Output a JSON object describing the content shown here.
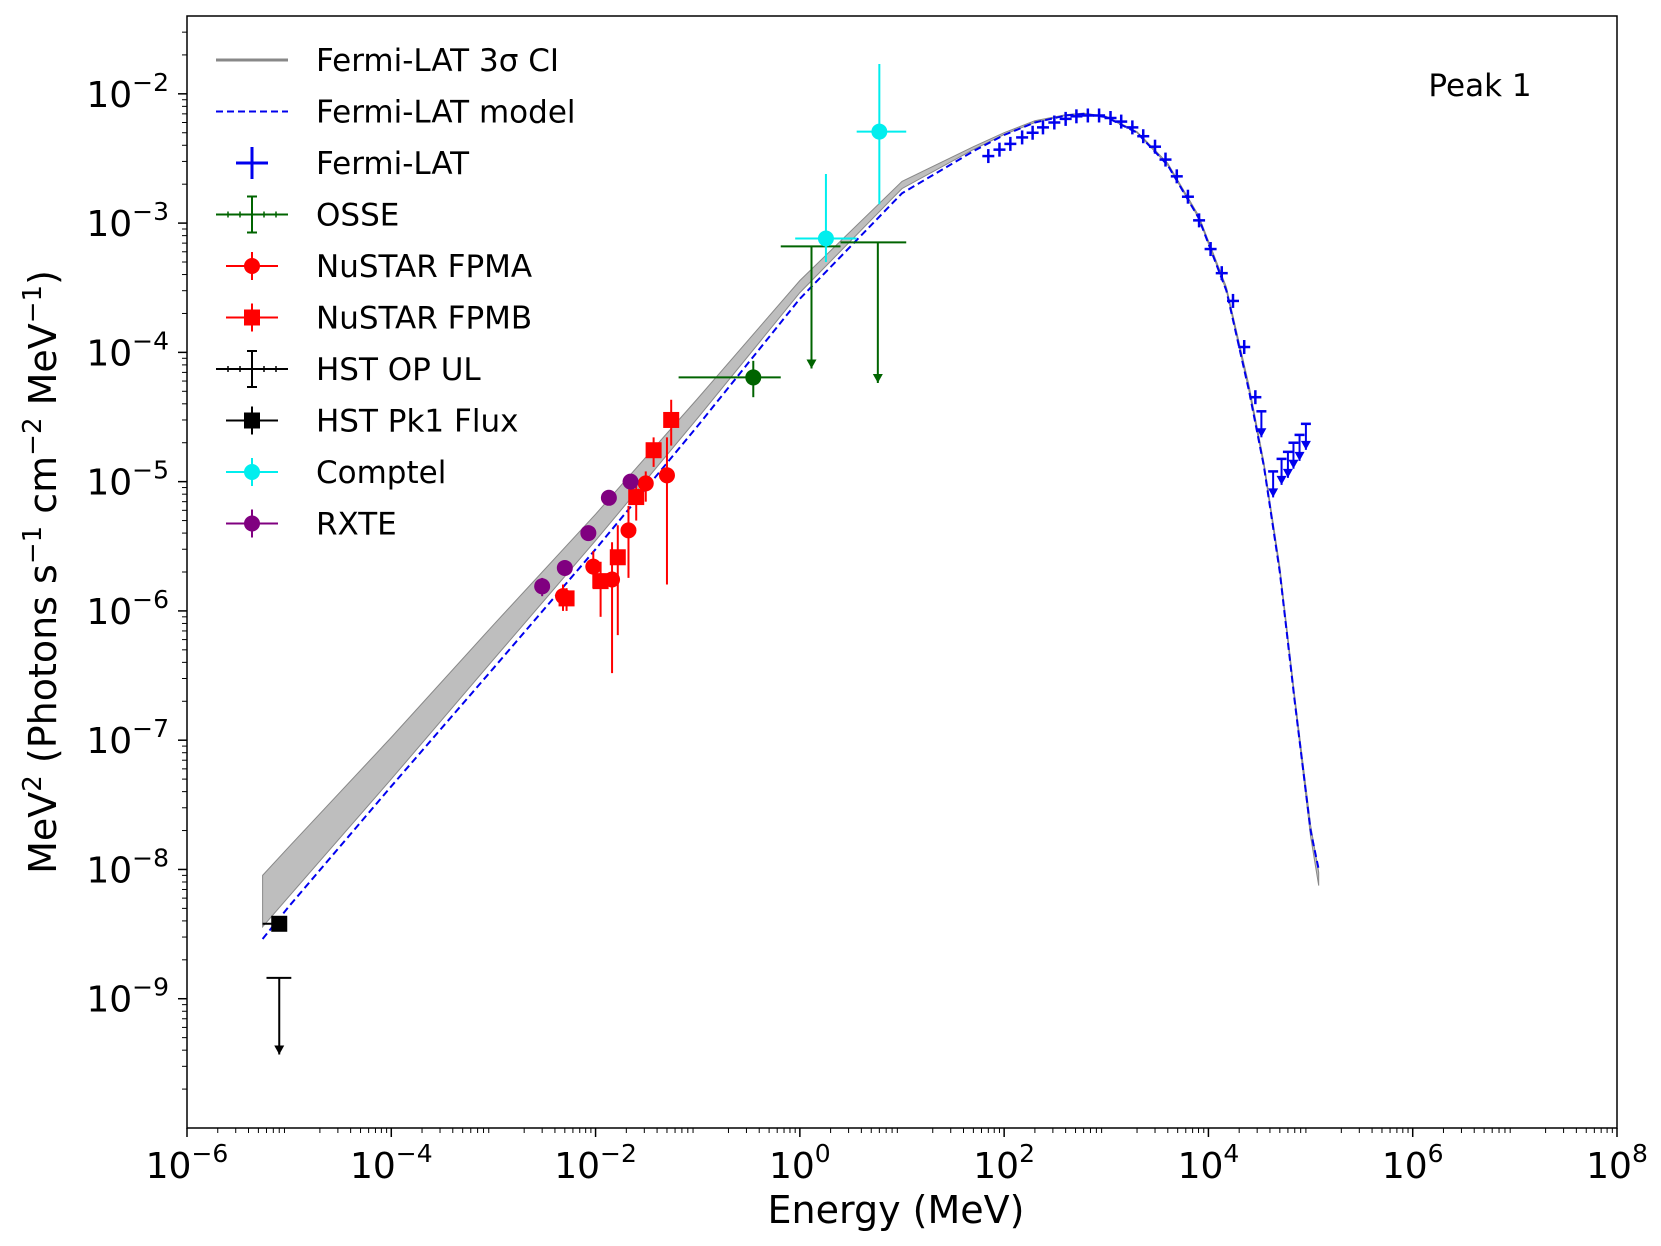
{
  "chart_data": {
    "type": "scatter",
    "annotation": "Peak 1",
    "xlabel": "Energy (MeV)",
    "ylabel": {
      "base": "MeV",
      "sup1": "2",
      "mid1": " (Photons s",
      "sup2": "−1",
      "mid2": " cm",
      "sup3": "−2",
      "mid3": " MeV",
      "sup4": "−1",
      "end": ")"
    },
    "xscale": "log",
    "yscale": "log",
    "xlim": [
      1e-06,
      100000000.0
    ],
    "ylim": [
      1e-10,
      0.04
    ],
    "x_ticks": [
      {
        "base": "10",
        "exp": "−6",
        "value": 1e-06
      },
      {
        "base": "10",
        "exp": "−4",
        "value": 0.0001
      },
      {
        "base": "10",
        "exp": "−2",
        "value": 0.01
      },
      {
        "base": "10",
        "exp": "0",
        "value": 1
      },
      {
        "base": "10",
        "exp": "2",
        "value": 100
      },
      {
        "base": "10",
        "exp": "4",
        "value": 10000.0
      },
      {
        "base": "10",
        "exp": "6",
        "value": 1000000.0
      },
      {
        "base": "10",
        "exp": "8",
        "value": 100000000.0
      }
    ],
    "y_ticks": [
      {
        "base": "10",
        "exp": "−9",
        "value": 1e-09
      },
      {
        "base": "10",
        "exp": "−8",
        "value": 1e-08
      },
      {
        "base": "10",
        "exp": "−7",
        "value": 1e-07
      },
      {
        "base": "10",
        "exp": "−6",
        "value": 1e-06
      },
      {
        "base": "10",
        "exp": "−5",
        "value": 1e-05
      },
      {
        "base": "10",
        "exp": "−4",
        "value": 0.0001
      },
      {
        "base": "10",
        "exp": "−3",
        "value": 0.001
      },
      {
        "base": "10",
        "exp": "−2",
        "value": 0.01
      }
    ],
    "legend_position": "upper-left",
    "legend": [
      {
        "label": "Fermi-LAT 3σ CI",
        "kind": "band",
        "color": "#888888"
      },
      {
        "label": "Fermi-LAT model",
        "kind": "dashed",
        "color": "#0000ee"
      },
      {
        "label": "Fermi-LAT",
        "kind": "cross",
        "color": "#0000ee"
      },
      {
        "label": "OSSE",
        "kind": "errbar",
        "color": "#006400"
      },
      {
        "label": "NuSTAR FPMA",
        "kind": "circle",
        "color": "#ff0000"
      },
      {
        "label": "NuSTAR FPMB",
        "kind": "square",
        "color": "#ff0000"
      },
      {
        "label": "HST OP UL",
        "kind": "errbar",
        "color": "#000000"
      },
      {
        "label": "HST Pk1 Flux",
        "kind": "square",
        "color": "#000000"
      },
      {
        "label": "Comptel",
        "kind": "circle",
        "color": "#00eeee"
      },
      {
        "label": "RXTE",
        "kind": "circle",
        "color": "#800080"
      }
    ],
    "model": {
      "name": "Fermi-LAT model",
      "color": "#0000ee",
      "x": [
        5.5e-06,
        1e-05,
        0.0001,
        0.001,
        0.01,
        0.1,
        1,
        10,
        50,
        100,
        200,
        400,
        600,
        1000,
        2000,
        4000,
        8000,
        15000,
        25000,
        35000,
        50000,
        70000,
        100000,
        120000
      ],
      "y": [
        2.9e-09,
        5.2e-09,
        4.4e-08,
        3.6e-07,
        3e-06,
        2.7e-05,
        0.00026,
        0.0017,
        0.0036,
        0.0048,
        0.006,
        0.0068,
        0.007,
        0.0066,
        0.005,
        0.0028,
        0.0011,
        0.0003,
        5e-05,
        1.3e-05,
        2e-06,
        2e-07,
        2e-08,
        1e-08
      ]
    },
    "ci_band": {
      "name": "Fermi-LAT 3σ CI",
      "color": "#888888",
      "x": [
        5.5e-06,
        1e-05,
        0.0001,
        0.001,
        0.01,
        0.1,
        1,
        10,
        50,
        100,
        200,
        400,
        600,
        1000,
        2000,
        4000,
        8000,
        15000,
        25000,
        35000,
        50000,
        70000,
        100000,
        120000
      ],
      "y_low": [
        3.6e-09,
        6.2e-09,
        5e-08,
        4.2e-07,
        3.5e-06,
        3.1e-05,
        0.00029,
        0.00185,
        0.0037,
        0.00485,
        0.006,
        0.0068,
        0.007,
        0.0066,
        0.005,
        0.0028,
        0.0011,
        0.0003,
        5e-05,
        1.3e-05,
        2e-06,
        2e-07,
        1.8e-08,
        7.5e-09
      ],
      "y_high": [
        9e-09,
        1.5e-08,
        1.05e-07,
        7.8e-07,
        5.6e-06,
        4.4e-05,
        0.00036,
        0.0021,
        0.0039,
        0.005,
        0.0062,
        0.0069,
        0.0071,
        0.0067,
        0.0051,
        0.0029,
        0.00115,
        0.00032,
        5.5e-05,
        1.4e-05,
        2.2e-06,
        2.2e-07,
        2.2e-08,
        9.5e-09
      ]
    },
    "series": [
      {
        "name": "Fermi-LAT",
        "color": "#0000ee",
        "marker": "cross",
        "points": [
          [
            70,
            0.0033
          ],
          [
            90,
            0.0037
          ],
          [
            115,
            0.0041
          ],
          [
            150,
            0.0046
          ],
          [
            190,
            0.005
          ],
          [
            240,
            0.0055
          ],
          [
            310,
            0.006
          ],
          [
            400,
            0.0064
          ],
          [
            510,
            0.0067
          ],
          [
            660,
            0.0068
          ],
          [
            850,
            0.0068
          ],
          [
            1100,
            0.0065
          ],
          [
            1400,
            0.0061
          ],
          [
            1800,
            0.0055
          ],
          [
            2300,
            0.0047
          ],
          [
            3000,
            0.0039
          ],
          [
            3800,
            0.0031
          ],
          [
            4900,
            0.0023
          ],
          [
            6300,
            0.0016
          ],
          [
            8100,
            0.00105
          ],
          [
            10500,
            0.00063
          ],
          [
            13500,
            0.00041
          ],
          [
            17400,
            0.00025
          ],
          [
            22400,
            0.00011
          ],
          [
            28800,
            4.5e-05
          ]
        ],
        "upper_limits": [
          [
            33000,
            3.5e-05
          ],
          [
            43000,
            1.2e-05
          ],
          [
            52000,
            1.5e-05
          ],
          [
            60000,
            1.7e-05
          ],
          [
            68000,
            2e-05
          ],
          [
            78000,
            2.3e-05
          ],
          [
            90000,
            2.8e-05
          ]
        ]
      },
      {
        "name": "OSSE",
        "color": "#006400",
        "marker": "circle",
        "points": [
          {
            "x": 0.35,
            "y": 6.4e-05,
            "xlo": 0.065,
            "xhi": 0.65,
            "ylo": 4.5e-05,
            "yhi": 8.6e-05
          }
        ],
        "upper_limits": [
          {
            "x": 1.3,
            "y": 0.00066,
            "xlo": 0.65,
            "xhi": 2.5,
            "to": 7.5e-05
          },
          {
            "x": 5.8,
            "y": 0.00071,
            "xlo": 2.5,
            "xhi": 11,
            "to": 5.8e-05
          }
        ]
      },
      {
        "name": "NuSTAR FPMA",
        "color": "#ff0000",
        "marker": "circle",
        "points": [
          {
            "x": 0.0048,
            "y": 1.3e-06,
            "ylo": 1e-06,
            "yhi": 1.6e-06
          },
          {
            "x": 0.0095,
            "y": 2.2e-06,
            "ylo": 1.5e-06,
            "yhi": 2.9e-06
          },
          {
            "x": 0.0145,
            "y": 1.75e-06,
            "ylo": 3.3e-07,
            "yhi": 3.4e-06
          },
          {
            "x": 0.021,
            "y": 4.2e-06,
            "ylo": 1.8e-06,
            "yhi": 6.5e-06
          },
          {
            "x": 0.031,
            "y": 9.7e-06,
            "ylo": 7e-06,
            "yhi": 1.2e-05
          },
          {
            "x": 0.05,
            "y": 1.12e-05,
            "ylo": 1.6e-06,
            "yhi": 2.2e-05
          }
        ]
      },
      {
        "name": "NuSTAR FPMB",
        "color": "#ff0000",
        "marker": "square",
        "points": [
          {
            "x": 0.0052,
            "y": 1.25e-06,
            "ylo": 1e-06,
            "yhi": 1.5e-06
          },
          {
            "x": 0.0112,
            "y": 1.7e-06,
            "ylo": 9e-07,
            "yhi": 2.4e-06
          },
          {
            "x": 0.0165,
            "y": 2.6e-06,
            "ylo": 6.5e-07,
            "yhi": 4.6e-06
          },
          {
            "x": 0.025,
            "y": 7.6e-06,
            "ylo": 5e-06,
            "yhi": 1e-05
          },
          {
            "x": 0.037,
            "y": 1.75e-05,
            "ylo": 1.3e-05,
            "yhi": 2.2e-05
          },
          {
            "x": 0.055,
            "y": 3e-05,
            "ylo": 1.9e-05,
            "yhi": 4.3e-05
          }
        ]
      },
      {
        "name": "HST OP UL",
        "color": "#000000",
        "marker": "none",
        "upper_limits": [
          {
            "x": 8e-06,
            "y": 1.45e-09,
            "xlo": 6e-06,
            "xhi": 1.05e-05,
            "to": 3.7e-10
          }
        ]
      },
      {
        "name": "HST Pk1 Flux",
        "color": "#000000",
        "marker": "square",
        "points": [
          {
            "x": 8e-06,
            "y": 3.8e-09,
            "xlo": 5.5e-06,
            "xhi": 9.5e-06
          }
        ]
      },
      {
        "name": "Comptel",
        "color": "#00eeee",
        "marker": "circle",
        "points": [
          {
            "x": 1.8,
            "y": 0.00076,
            "xlo": 0.9,
            "xhi": 3.6,
            "ylo": 0.0005,
            "yhi": 0.0024
          },
          {
            "x": 6,
            "y": 0.0051,
            "xlo": 3.6,
            "xhi": 11,
            "ylo": 0.0014,
            "yhi": 0.017
          }
        ]
      },
      {
        "name": "RXTE",
        "color": "#800080",
        "marker": "circle",
        "points": [
          {
            "x": 0.003,
            "y": 1.55e-06,
            "ylo": 1.3e-06,
            "yhi": 1.8e-06
          },
          {
            "x": 0.005,
            "y": 2.15e-06,
            "ylo": 1.9e-06,
            "yhi": 2.4e-06
          },
          {
            "x": 0.0085,
            "y": 4e-06,
            "ylo": 3.6e-06,
            "yhi": 4.4e-06
          },
          {
            "x": 0.0135,
            "y": 7.5e-06,
            "ylo": 6.8e-06,
            "yhi": 8.2e-06
          },
          {
            "x": 0.022,
            "y": 1e-05,
            "ylo": 9e-06,
            "yhi": 1.1e-05
          }
        ]
      }
    ]
  }
}
